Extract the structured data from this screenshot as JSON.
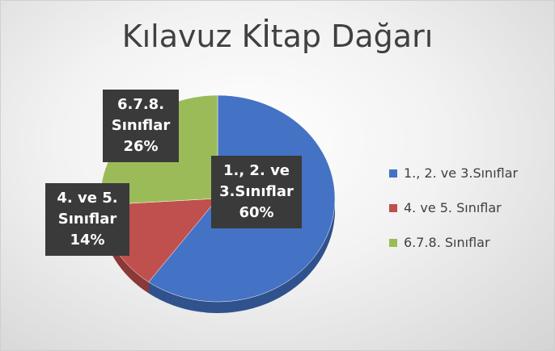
{
  "chart_data": {
    "type": "pie",
    "title": "Kılavuz Kİtap Dağarı",
    "categories": [
      "1., 2. ve 3.Sınıflar",
      "4. ve 5. Sınıflar",
      "6.7.8. Sınıflar"
    ],
    "values": [
      60,
      14,
      26
    ],
    "value_labels": [
      "60%",
      "14%",
      "26%"
    ],
    "colors": [
      "#4472c4",
      "#c0504d",
      "#9bbb59"
    ],
    "legend": "right"
  }
}
